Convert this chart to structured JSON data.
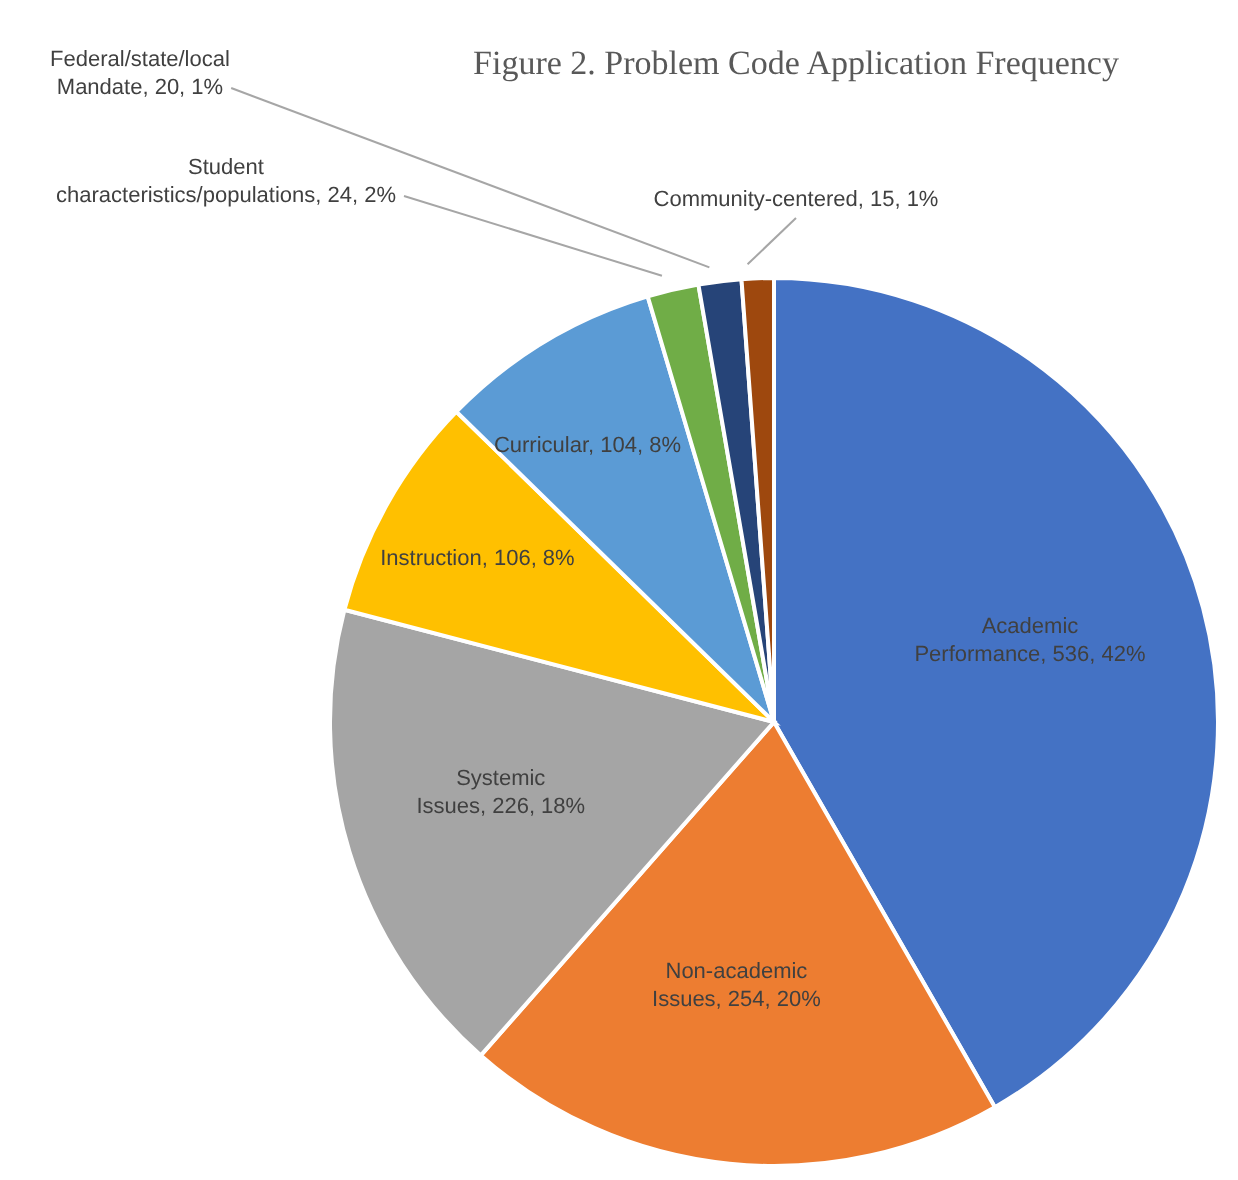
{
  "chart_data": {
    "type": "pie",
    "title": "Figure 2. Problem Code Application Frequency",
    "categories": [
      "Academic Performance",
      "Non-academic Issues",
      "Systemic Issues",
      "Instruction",
      "Curricular",
      "Student characteristics/populations",
      "Federal/state/local Mandate",
      "Community-centered"
    ],
    "values": [
      536,
      254,
      226,
      106,
      104,
      24,
      20,
      15
    ],
    "value_labels": [
      "536, 42%",
      "254, 20%",
      "226, 18%",
      "106, 8%",
      "104, 8%",
      "24, 2%",
      "20, 1%",
      "15, 1%"
    ],
    "colors": [
      "#4472c4",
      "#ed7d31",
      "#a5a5a5",
      "#ffc000",
      "#5b9bd5",
      "#70ad47",
      "#264478",
      "#9e480e"
    ],
    "legend": false
  }
}
